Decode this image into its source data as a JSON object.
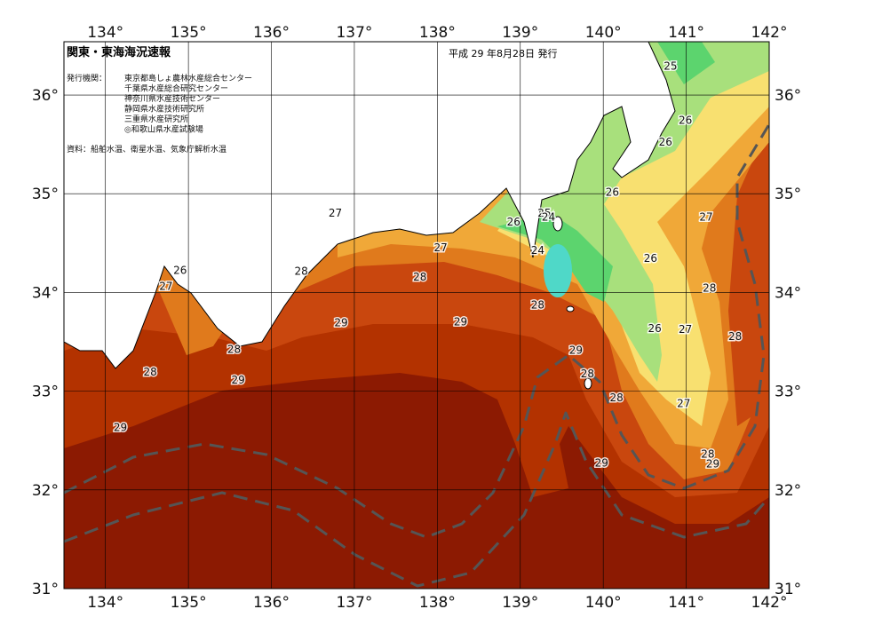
{
  "header": {
    "title": "関東・東海海況速報",
    "date": "平成 29 年8月28日 発行",
    "agencies_label": "発行機関：",
    "agencies": [
      "東京都島しょ農林水産総合センター",
      "千葉県水産総合研究センター",
      "神奈川県水産技術センター",
      "静岡県水産技術研究所",
      "三重県水産研究所",
      "◎和歌山県水産試験場"
    ],
    "source": "資料：船舶水温、衛星水温、気象庁解析水温"
  },
  "map": {
    "xlim": [
      133.5,
      142.0
    ],
    "ylim": [
      31.0,
      36.54
    ],
    "xticks": [
      {
        "value": 134,
        "label": "134°"
      },
      {
        "value": 135,
        "label": "135°"
      },
      {
        "value": 136,
        "label": "136°"
      },
      {
        "value": 137,
        "label": "137°"
      },
      {
        "value": 138,
        "label": "138°"
      },
      {
        "value": 139,
        "label": "139°"
      },
      {
        "value": 140,
        "label": "140°"
      },
      {
        "value": 141,
        "label": "141°"
      },
      {
        "value": 142,
        "label": "142°"
      }
    ],
    "yticks": [
      {
        "value": 31,
        "label": "31°"
      },
      {
        "value": 32,
        "label": "32°"
      },
      {
        "value": 33,
        "label": "33°"
      },
      {
        "value": 34,
        "label": "34°"
      },
      {
        "value": 35,
        "label": "35°"
      },
      {
        "value": 36,
        "label": "36°"
      }
    ],
    "contour_labels": [
      {
        "value": 25,
        "lon": 140.81,
        "lat": 36.29
      },
      {
        "value": 26,
        "lon": 140.99,
        "lat": 35.74
      },
      {
        "value": 26,
        "lon": 140.75,
        "lat": 35.52
      },
      {
        "value": 26,
        "lon": 140.11,
        "lat": 35.01
      },
      {
        "value": 27,
        "lon": 141.24,
        "lat": 34.76
      },
      {
        "value": 27,
        "lon": 136.77,
        "lat": 34.8
      },
      {
        "value": 26,
        "lon": 138.92,
        "lat": 34.71
      },
      {
        "value": 25,
        "lon": 139.29,
        "lat": 34.8
      },
      {
        "value": 24,
        "lon": 139.34,
        "lat": 34.76
      },
      {
        "value": 24,
        "lon": 139.21,
        "lat": 34.42
      },
      {
        "value": 27,
        "lon": 138.04,
        "lat": 34.45
      },
      {
        "value": 26,
        "lon": 140.57,
        "lat": 34.34
      },
      {
        "value": 28,
        "lon": 136.36,
        "lat": 34.21
      },
      {
        "value": 28,
        "lon": 137.79,
        "lat": 34.15
      },
      {
        "value": 26,
        "lon": 134.9,
        "lat": 34.22
      },
      {
        "value": 27,
        "lon": 134.73,
        "lat": 34.06
      },
      {
        "value": 28,
        "lon": 141.28,
        "lat": 34.04
      },
      {
        "value": 28,
        "lon": 139.21,
        "lat": 33.87
      },
      {
        "value": 29,
        "lon": 136.84,
        "lat": 33.69
      },
      {
        "value": 29,
        "lon": 138.28,
        "lat": 33.7
      },
      {
        "value": 26,
        "lon": 140.62,
        "lat": 33.63
      },
      {
        "value": 27,
        "lon": 140.99,
        "lat": 33.62
      },
      {
        "value": 28,
        "lon": 141.59,
        "lat": 33.55
      },
      {
        "value": 28,
        "lon": 135.55,
        "lat": 33.42
      },
      {
        "value": 29,
        "lon": 139.67,
        "lat": 33.41
      },
      {
        "value": 28,
        "lon": 134.54,
        "lat": 33.19
      },
      {
        "value": 28,
        "lon": 139.81,
        "lat": 33.17
      },
      {
        "value": 29,
        "lon": 135.6,
        "lat": 33.11
      },
      {
        "value": 28,
        "lon": 140.16,
        "lat": 32.93
      },
      {
        "value": 27,
        "lon": 140.97,
        "lat": 32.87
      },
      {
        "value": 29,
        "lon": 134.18,
        "lat": 32.63
      },
      {
        "value": 28,
        "lon": 141.26,
        "lat": 32.36
      },
      {
        "value": 29,
        "lon": 141.32,
        "lat": 32.26
      },
      {
        "value": 29,
        "lon": 139.98,
        "lat": 32.27
      }
    ]
  }
}
